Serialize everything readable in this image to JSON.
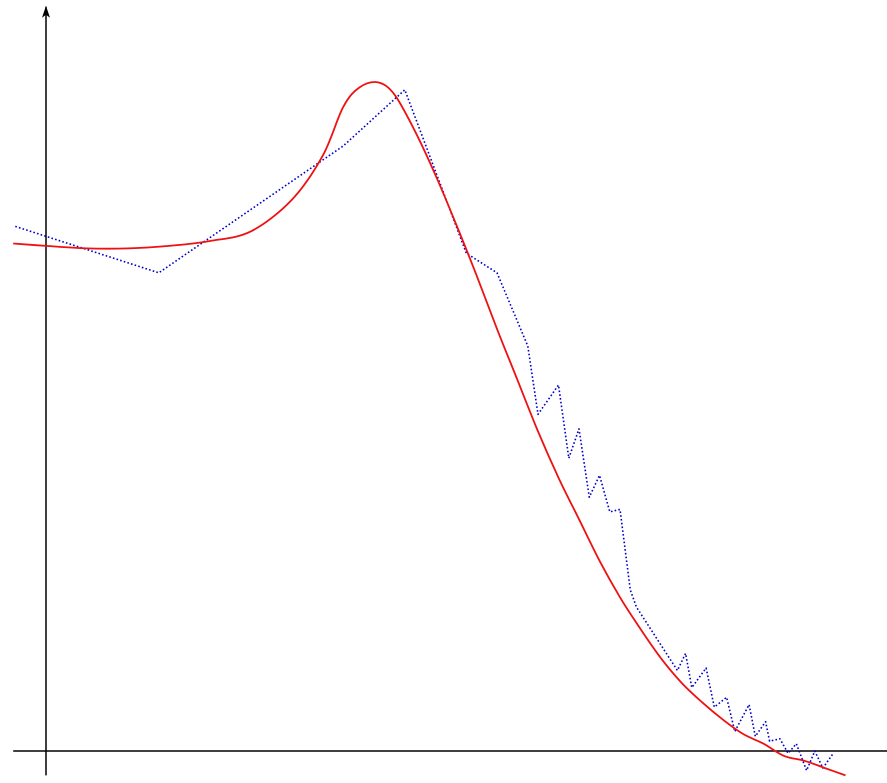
{
  "chart_data": {
    "type": "line",
    "title": "",
    "xlabel": "",
    "ylabel": "",
    "xlim": [
      -1.6,
      42.0
    ],
    "ylim": [
      -1.0,
      30.5
    ],
    "grid": false,
    "legend": "none",
    "axes": {
      "x_arrow": true,
      "y_arrow": true
    },
    "series": [
      {
        "style": "dotted",
        "color": "#0000cc",
        "x": [
          -1.5,
          5.5,
          14.5,
          17.5,
          20.5,
          22.0,
          23.5,
          24.0,
          25.0,
          25.5,
          26.0,
          26.5,
          27.0,
          27.5,
          28.0,
          28.5,
          28.8,
          29.8,
          30.8,
          31.2,
          31.5,
          32.2,
          32.6,
          33.2,
          33.6,
          34.3,
          34.6,
          35.1,
          35.3,
          35.8,
          36.2,
          36.6,
          37.1,
          37.5,
          37.9,
          38.4
        ],
        "y": [
          21.5,
          19.6,
          24.8,
          27.1,
          20.4,
          19.6,
          16.6,
          13.8,
          15.0,
          12.0,
          13.2,
          10.4,
          11.3,
          9.8,
          9.9,
          6.6,
          5.9,
          4.6,
          3.3,
          4.0,
          2.6,
          3.4,
          1.8,
          2.2,
          0.8,
          1.9,
          0.6,
          1.2,
          0.4,
          0.5,
          -0.1,
          0.3,
          -0.8,
          0.0,
          -0.7,
          -0.1
        ]
      },
      {
        "style": "solid",
        "color": "#ee1111",
        "x": [
          -1.6,
          0.0,
          2.0,
          4.0,
          6.0,
          8.0,
          10.0,
          12.0,
          13.5,
          14.5,
          15.3,
          16.2,
          17.0,
          18.0,
          19.0,
          20.0,
          21.0,
          22.0,
          23.0,
          24.0,
          25.0,
          26.0,
          27.0,
          28.0,
          29.0,
          30.0,
          31.0,
          32.0,
          33.0,
          34.0,
          35.0,
          36.0,
          37.0,
          38.0,
          39.0
        ],
        "y": [
          20.8,
          20.7,
          20.6,
          20.6,
          20.7,
          20.9,
          21.3,
          22.6,
          24.4,
          26.4,
          27.2,
          27.4,
          26.9,
          25.4,
          23.6,
          21.6,
          19.5,
          17.3,
          15.2,
          13.1,
          11.2,
          9.5,
          7.8,
          6.3,
          5.0,
          3.8,
          2.8,
          2.0,
          1.3,
          0.7,
          0.3,
          -0.2,
          -0.4,
          -0.7,
          -1.0
        ]
      }
    ]
  }
}
